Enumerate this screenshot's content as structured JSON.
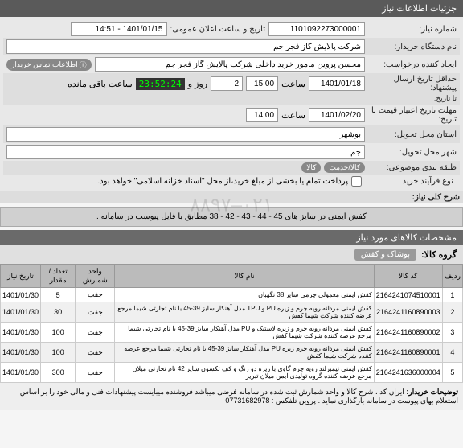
{
  "header": {
    "title": "جزئیات اطلاعات نیاز"
  },
  "form": {
    "need_number_label": "شماره نیاز:",
    "need_number": "1101092273000001",
    "announce_label": "تاریخ و ساعت اعلان عمومی:",
    "announce_value": "1401/01/15 - 14:51",
    "buyer_label": "نام دستگاه خریدار:",
    "buyer_value": "شرکت پالایش گاز فجر جم",
    "creator_label": "ایجاد کننده درخواست:",
    "creator_value": "محسن پروین مامور خرید داخلی شرکت پالایش گاز فجر جم",
    "contact_pill": "اطلاعات تماس خریدار",
    "deadline_label": "حداقل تاریخ ارسال پیشنهاد:",
    "deadline_note": "تا تاریخ:",
    "deadline_date": "1401/01/18",
    "time_label": "ساعت",
    "deadline_time": "15:00",
    "days_value": "2",
    "days_label": "روز و",
    "countdown": "23:52:24",
    "remain_label": "ساعت باقی مانده",
    "validity_label": "مهلت تاریخ اعتبار قیمت تا تاریخ:",
    "validity_date": "1401/02/20",
    "validity_time": "14:00",
    "province_label": "استان محل تحویل:",
    "province_value": "بوشهر",
    "city_label": "شهر محل تحویل:",
    "city_value": "جم",
    "category_label": "طبقه بندی موضوعی:",
    "cat_chip1": "کالا/خدمت",
    "cat_chip2": "کالا",
    "process_label": "نوع فرآیند خرید :",
    "process_note": "پرداخت تمام یا بخشی از مبلغ خرید،از محل \"اسناد خزانه اسلامی\" خواهد بود."
  },
  "desc": {
    "label": "شرح کلی نیاز:",
    "text": "کفش ایمنی در سایز های 45 - 44 - 43 - 42 - 38 مطابق با فایل پیوست در سامانه ."
  },
  "items": {
    "section_title": "مشخصات کالاهای مورد نیاز",
    "group_label": "گروه کالا:",
    "group_value": "پوشاک و کفش",
    "cols": {
      "row": "ردیف",
      "code": "کد کالا",
      "name": "نام کالا",
      "unit": "واحد شمارش",
      "qty": "تعداد / مقدار",
      "date": "تاریخ نیاز"
    },
    "rows": [
      {
        "n": "1",
        "code": "2164241074510001",
        "name": "کفش ایمنی معمولی چرمی سایز 38 نگهبان",
        "unit": "جفت",
        "qty": "5",
        "date": "1401/01/30"
      },
      {
        "n": "2",
        "code": "2164241160890003",
        "name": "کفش ایمنی مردانه رویه چرم و زیره PU و TPU مدل آهنکار سایز 39-45 با نام تجارتی شیما مرجع عرضه کننده شرکت شیما کفش",
        "unit": "جفت",
        "qty": "30",
        "date": "1401/01/30"
      },
      {
        "n": "3",
        "code": "2164241160890002",
        "name": "کفش ایمنی مردانه رویه چرم و زیره لاستیک و PU مدل آهنکار سایز 39-45 با نام تجارتی شیما مرجع عرضه کننده شرکت شیما کفش",
        "unit": "جفت",
        "qty": "100",
        "date": "1401/01/30"
      },
      {
        "n": "4",
        "code": "2164241160890001",
        "name": "کفش ایمنی مردانه رویه چرم زیره PU مدل آهنکار سایز 39-45 با نام تجارتی شیما مرجع عرضه کننده شرکت شیما کفش",
        "unit": "جفت",
        "qty": "100",
        "date": "1401/01/30"
      },
      {
        "n": "5",
        "code": "2164241636000004",
        "name": "کفش ایمنی تیمبرلند رویه چرم گاوی با زیره دو رنگ و کف تکسون سایز 42 نام تجارتی میلان مرجع عرضه کننده گروه تولیدی ایمن میلان تبریز",
        "unit": "جفت",
        "qty": "300",
        "date": "1401/01/30"
      }
    ]
  },
  "footer": {
    "note_label": "توضیحات خریدار:",
    "note": "ایران کد ، شرح کالا و واحد شمارش ثبت شده در سامانه فرضی میباشد فروشنده میبایست پیشنهادات فنی و مالی خود را بر اساس استعلام بهای پیوست در سامانه بارگذاری نماید . پروین      تلفکس : 07731682978"
  },
  "watermark": "۰۲۱–۸۸۹۷"
}
